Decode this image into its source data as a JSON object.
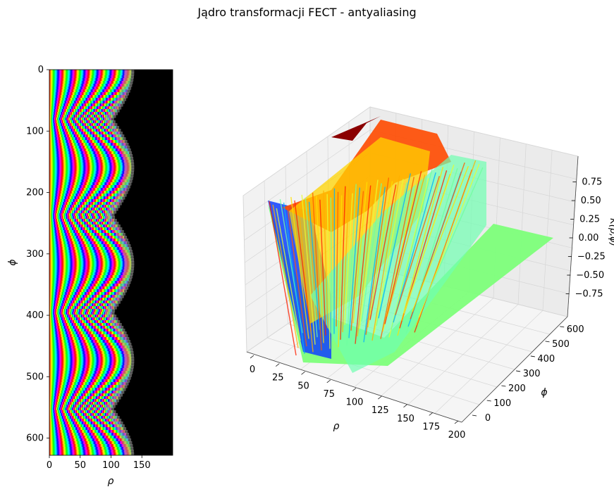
{
  "figure": {
    "title": "Jądro transformacji FECT - antyaliasing"
  },
  "chart_data": [
    {
      "type": "heatmap",
      "xlabel": "ρ",
      "ylabel": "ϕ",
      "xlim": [
        0,
        200
      ],
      "ylim": [
        628,
        0
      ],
      "x_ticks": [
        0,
        50,
        100,
        150
      ],
      "y_ticks": [
        0,
        100,
        200,
        300,
        400,
        500,
        600
      ],
      "colormap": "hsv",
      "background_color": "#000000",
      "description_of_boundary": "ρ_max(ϕ) ≈ 100 + 33·|cos(ϕ·2π/314)|"
    },
    {
      "type": "surface3d",
      "xlabel": "ρ",
      "ylabel": "ϕ",
      "zlabel": "K(ρ,ϕ)",
      "x_ticks": [
        0,
        25,
        50,
        75,
        100,
        125,
        150,
        175,
        200
      ],
      "y_ticks": [
        0,
        100,
        200,
        300,
        400,
        500,
        600
      ],
      "z_ticks": [
        "−0.75",
        "−0.50",
        "−0.25",
        "0.00",
        "0.25",
        "0.50",
        "0.75"
      ],
      "xlim": [
        0,
        200
      ],
      "ylim": [
        0,
        628
      ],
      "zlim": [
        -1,
        1
      ],
      "colormap": "jet"
    }
  ]
}
